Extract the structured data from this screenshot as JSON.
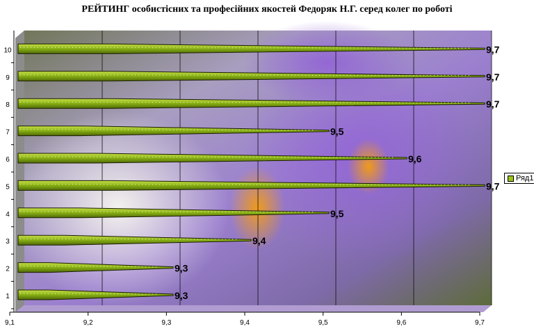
{
  "chart_data": {
    "type": "bar",
    "orientation": "horizontal",
    "title": "РЕЙТИНГ особистісних та професійних якостей Федоряк Н.Г. серед колег по роботі",
    "categories": [
      "1",
      "2",
      "3",
      "4",
      "5",
      "6",
      "7",
      "8",
      "9",
      "10"
    ],
    "series": [
      {
        "name": "Ряд1",
        "values": [
          9.3,
          9.3,
          9.4,
          9.5,
          9.7,
          9.6,
          9.5,
          9.7,
          9.7,
          9.7
        ]
      }
    ],
    "value_labels": [
      "9,3",
      "9,3",
      "9,4",
      "9,5",
      "9,7",
      "9,6",
      "9,5",
      "9,7",
      "9,7",
      "9,7"
    ],
    "xlim": [
      9.1,
      9.7
    ],
    "x_ticks": [
      "9,1",
      "9,2",
      "9,3",
      "9,4",
      "9,5",
      "9,6",
      "9,7"
    ],
    "grid": true,
    "legend_position": "right",
    "bar_color": "#8db516",
    "style": "3d-cone"
  }
}
